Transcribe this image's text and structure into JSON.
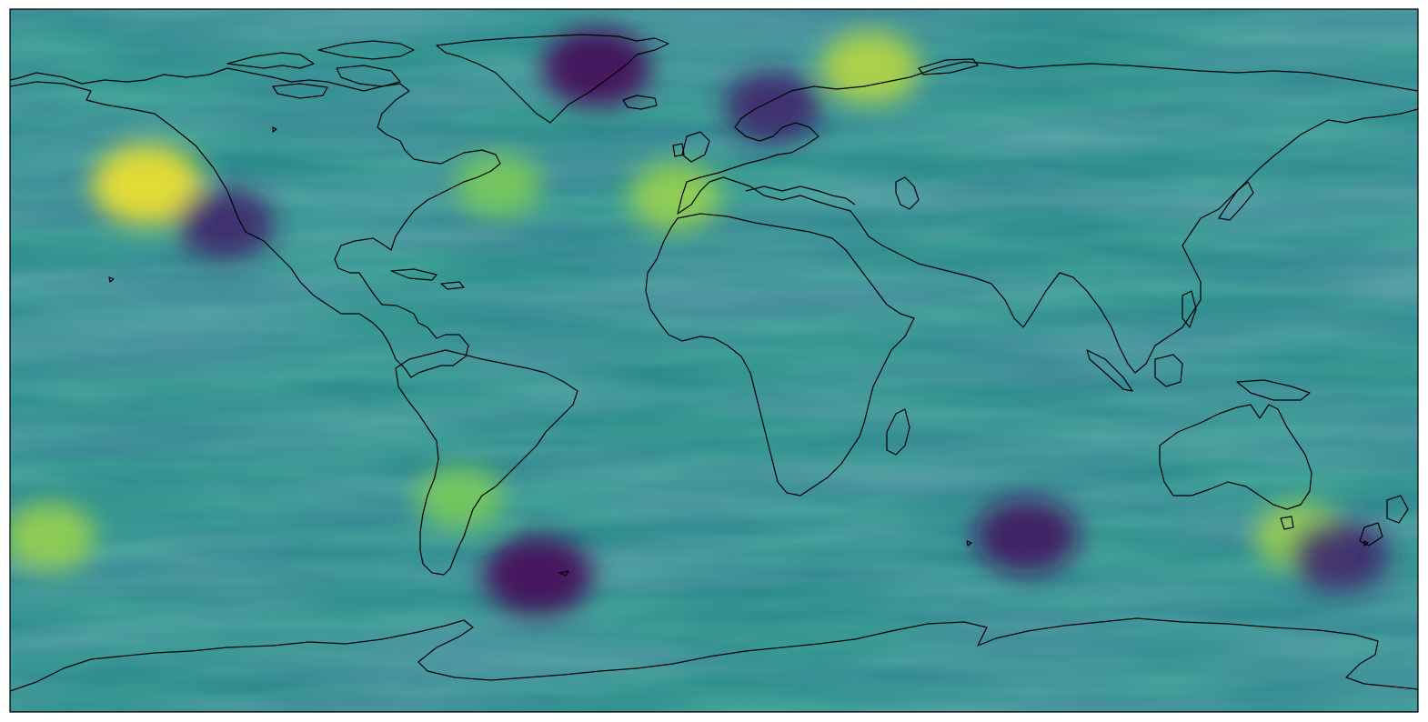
{
  "figure": {
    "projection": "plate-carree",
    "background": "#ffffff",
    "colormap": "viridis",
    "colormap_stops": [
      "#440154",
      "#3b528b",
      "#21918c",
      "#5ec962",
      "#fde725"
    ],
    "coastline_color": "#000000",
    "frame_color": "#000000",
    "title": "",
    "colorbar": false,
    "axis_ticks": false
  },
  "field_features": [
    {
      "name": "gulf-of-alaska-maximum",
      "lon": -145,
      "lat": 45,
      "level": 1.0
    },
    {
      "name": "barents-sea-maximum",
      "lon": 40,
      "lat": 75,
      "level": 0.9
    },
    {
      "name": "iberia-maximum",
      "lon": -10,
      "lat": 42,
      "level": 0.85
    },
    {
      "name": "northwest-atlantic-maximum",
      "lon": -55,
      "lat": 45,
      "level": 0.8
    },
    {
      "name": "south-pacific-maximum",
      "lon": -170,
      "lat": -45,
      "level": 0.85
    },
    {
      "name": "tasman-sea-maximum",
      "lon": 150,
      "lat": -45,
      "level": 0.85
    },
    {
      "name": "andes-maximum",
      "lon": -65,
      "lat": -35,
      "level": 0.8
    },
    {
      "name": "greenland-minimum",
      "lon": -30,
      "lat": 75,
      "level": 0.0
    },
    {
      "name": "scandinavia-minimum",
      "lon": 15,
      "lat": 65,
      "level": 0.1
    },
    {
      "name": "drake-passage-minimum",
      "lon": -45,
      "lat": -55,
      "level": 0.0
    },
    {
      "name": "south-indian-ocean-minimum",
      "lon": 80,
      "lat": -45,
      "level": 0.05
    },
    {
      "name": "northeast-pacific-minimum",
      "lon": -125,
      "lat": 35,
      "level": 0.1
    },
    {
      "name": "southern-ocean-minimum",
      "lon": 160,
      "lat": -50,
      "level": 0.1
    }
  ]
}
